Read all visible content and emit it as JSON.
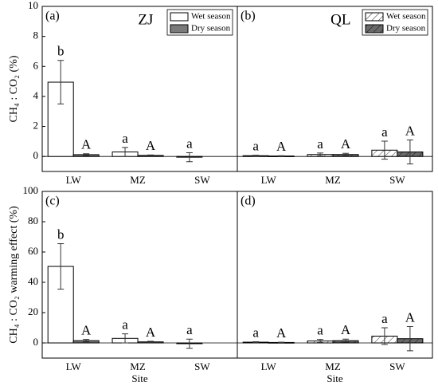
{
  "chart_data": [
    {
      "type": "bar",
      "panel_label": "(a)",
      "site_title": "ZJ",
      "ylabel": "CH₄ : CO₂ (%)",
      "categories": [
        "LW",
        "MZ",
        "SW"
      ],
      "ylim": [
        -1,
        10
      ],
      "yticks": [
        0,
        2,
        4,
        6,
        8,
        10
      ],
      "legend": "upper right",
      "series": [
        {
          "name": "Wet season",
          "color": "#ffffff",
          "hatch": false,
          "values": [
            4.95,
            0.3,
            -0.05
          ],
          "errors": [
            1.45,
            0.3,
            0.3
          ],
          "letters": [
            "b",
            "a",
            "a"
          ]
        },
        {
          "name": "Dry season",
          "color": "#7a7a7a",
          "hatch": false,
          "values": [
            0.12,
            0.07,
            null
          ],
          "errors": [
            0.06,
            0.03,
            null
          ],
          "letters": [
            "A",
            "A",
            null
          ]
        }
      ]
    },
    {
      "type": "bar",
      "panel_label": "(b)",
      "site_title": "QL",
      "categories": [
        "LW",
        "MZ",
        "SW"
      ],
      "ylim": [
        -1,
        10
      ],
      "legend": "upper right",
      "series": [
        {
          "name": "Wet season",
          "color": "#ffffff",
          "hatch": true,
          "values": [
            0.05,
            0.13,
            0.42
          ],
          "errors": [
            0.03,
            0.1,
            0.6
          ],
          "letters": [
            "a",
            "a",
            "a"
          ]
        },
        {
          "name": "Dry season",
          "color": "#6a6a6a",
          "hatch": true,
          "values": [
            0.03,
            0.13,
            0.3
          ],
          "errors": [
            0.02,
            0.08,
            0.8
          ],
          "letters": [
            "A",
            "A",
            "A"
          ]
        }
      ]
    },
    {
      "type": "bar",
      "panel_label": "(c)",
      "ylabel": "CH₄ : CO₂ warming effect (%)",
      "xlabel": "Site",
      "categories": [
        "LW",
        "MZ",
        "SW"
      ],
      "ylim": [
        -10,
        100
      ],
      "yticks": [
        0,
        20,
        40,
        60,
        80,
        100
      ],
      "legend": false,
      "series": [
        {
          "name": "Wet season",
          "color": "#ffffff",
          "hatch": false,
          "values": [
            50.5,
            3,
            -0.5
          ],
          "errors": [
            15,
            3,
            3
          ],
          "letters": [
            "b",
            "a",
            "a"
          ]
        },
        {
          "name": "Dry season",
          "color": "#7a7a7a",
          "hatch": false,
          "values": [
            1.5,
            0.7,
            null
          ],
          "errors": [
            0.8,
            0.4,
            null
          ],
          "letters": [
            "A",
            "A",
            null
          ]
        }
      ]
    },
    {
      "type": "bar",
      "panel_label": "(d)",
      "xlabel": "Site",
      "categories": [
        "LW",
        "MZ",
        "SW"
      ],
      "ylim": [
        -10,
        100
      ],
      "legend": false,
      "series": [
        {
          "name": "Wet season",
          "color": "#ffffff",
          "hatch": true,
          "values": [
            0.5,
            1.3,
            4.5
          ],
          "errors": [
            0.3,
            1,
            5.5
          ],
          "letters": [
            "a",
            "a",
            "a"
          ]
        },
        {
          "name": "Dry season",
          "color": "#6a6a6a",
          "hatch": true,
          "values": [
            0.3,
            1.5,
            2.8
          ],
          "errors": [
            0.2,
            1,
            8
          ],
          "letters": [
            "A",
            "A",
            "A"
          ]
        }
      ]
    }
  ]
}
